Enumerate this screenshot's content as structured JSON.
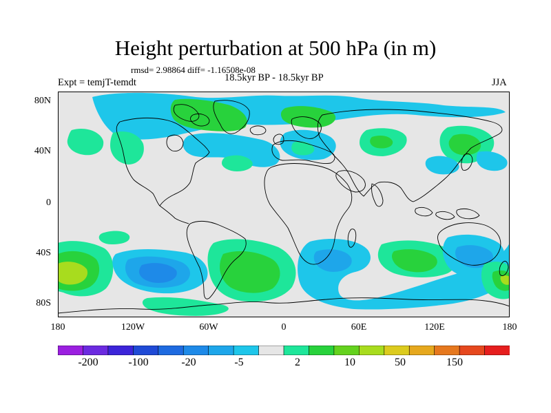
{
  "title": "Height perturbation at 500 hPa (in m)",
  "stats": "rmsd= 2.98864 diff= -1.16508e-08",
  "subtitle": "18.5kyr BP - 18.5kyr BP",
  "experiment": "Expt = temjT-temdt",
  "season": "JJA",
  "lat_labels": [
    "80N",
    "40N",
    "0",
    "40S",
    "80S"
  ],
  "lon_labels": [
    "180",
    "120W",
    "60W",
    "0",
    "60E",
    "120E",
    "180"
  ],
  "colorbar": {
    "colors": [
      "#9b1fe0",
      "#6b2ae0",
      "#3c24d9",
      "#1f4ad6",
      "#1e6ae0",
      "#1e8ae8",
      "#1ea6ea",
      "#1ec6ea",
      "#e6e6e6",
      "#1ee69a",
      "#28d23c",
      "#64d21e",
      "#a8dc1e",
      "#dccb1e",
      "#e6a81e",
      "#e6781e",
      "#e6481e",
      "#e61e1e"
    ],
    "labels": [
      "-200",
      "-100",
      "-20",
      "-5",
      "2",
      "10",
      "50",
      "150"
    ]
  },
  "colors": {
    "background": "#e6e6e6",
    "negative_light": "#1ec6ea",
    "negative_mid": "#1ea6ea",
    "negative_dark": "#1e8ae8",
    "positive_light": "#1ee69a",
    "positive_mid": "#28d23c",
    "positive_strong": "#a8dc1e"
  }
}
